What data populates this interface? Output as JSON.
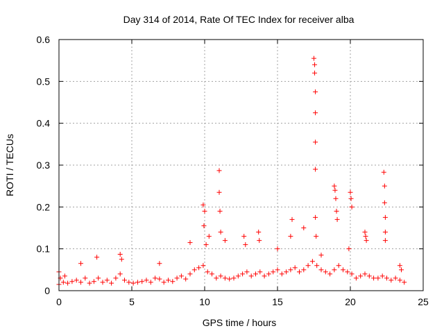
{
  "chart_data": {
    "type": "scatter",
    "title": "Day 314 of 2014, Rate Of TEC Index for receiver alba",
    "xlabel": "GPS time / hours",
    "ylabel": "ROTI / TECUs",
    "xlim": [
      0,
      25
    ],
    "ylim": [
      0,
      0.6
    ],
    "xticks": [
      0,
      5,
      10,
      15,
      20,
      25
    ],
    "xtick_labels": [
      "0",
      "5",
      "10",
      "15",
      "20",
      "25"
    ],
    "yticks": [
      0,
      0.1,
      0.2,
      0.3,
      0.4,
      0.5,
      0.6
    ],
    "ytick_labels": [
      "0",
      "0.1",
      "0.2",
      "0.3",
      "0.4",
      "0.5",
      "0.6"
    ],
    "grid": true,
    "marker": "+",
    "color": "#ff0000",
    "series": [
      {
        "name": "ROTI",
        "x": [
          0.0,
          0.3,
          0.6,
          0.9,
          1.2,
          1.5,
          1.8,
          2.1,
          2.4,
          2.7,
          3.0,
          3.3,
          3.6,
          3.9,
          4.2,
          4.5,
          4.8,
          5.1,
          5.4,
          5.7,
          6.0,
          6.3,
          6.6,
          6.9,
          7.2,
          7.5,
          7.8,
          8.1,
          8.4,
          8.7,
          9.0,
          9.3,
          9.6,
          9.9,
          10.2,
          10.5,
          10.8,
          11.1,
          11.4,
          11.7,
          12.0,
          12.3,
          12.6,
          12.9,
          13.2,
          13.5,
          13.8,
          14.1,
          14.4,
          14.7,
          15.0,
          15.3,
          15.6,
          15.9,
          16.2,
          16.5,
          16.8,
          17.1,
          17.4,
          17.7,
          18.0,
          18.3,
          18.6,
          18.9,
          19.2,
          19.5,
          19.8,
          20.1,
          20.4,
          20.7,
          21.0,
          21.3,
          21.6,
          21.9,
          22.2,
          22.5,
          22.8,
          23.1,
          23.4,
          23.7,
          0.0,
          0.1,
          0.4,
          1.5,
          2.6,
          4.2,
          4.3,
          6.9,
          9.0,
          9.9,
          9.95,
          10.0,
          10.1,
          10.3,
          11.0,
          11.0,
          11.05,
          11.1,
          11.4,
          12.7,
          12.8,
          13.7,
          13.75,
          15.0,
          15.9,
          16.0,
          16.8,
          17.5,
          17.55,
          17.55,
          17.6,
          17.6,
          17.6,
          17.6,
          17.6,
          17.65,
          18.0,
          18.9,
          18.95,
          19.0,
          19.05,
          19.1,
          19.9,
          20.0,
          20.05,
          20.1,
          21.0,
          21.05,
          21.1,
          22.3,
          22.35,
          22.35,
          22.4,
          22.4,
          22.4,
          23.4,
          23.5
        ],
        "y": [
          0.015,
          0.02,
          0.018,
          0.022,
          0.025,
          0.02,
          0.03,
          0.018,
          0.022,
          0.03,
          0.02,
          0.025,
          0.018,
          0.03,
          0.04,
          0.025,
          0.02,
          0.018,
          0.02,
          0.022,
          0.025,
          0.02,
          0.03,
          0.028,
          0.02,
          0.025,
          0.022,
          0.03,
          0.035,
          0.028,
          0.04,
          0.05,
          0.055,
          0.06,
          0.045,
          0.04,
          0.03,
          0.035,
          0.03,
          0.028,
          0.03,
          0.035,
          0.04,
          0.045,
          0.035,
          0.04,
          0.045,
          0.035,
          0.04,
          0.045,
          0.05,
          0.04,
          0.045,
          0.05,
          0.055,
          0.045,
          0.05,
          0.06,
          0.07,
          0.06,
          0.05,
          0.045,
          0.04,
          0.05,
          0.06,
          0.05,
          0.045,
          0.04,
          0.03,
          0.035,
          0.04,
          0.035,
          0.03,
          0.03,
          0.035,
          0.03,
          0.025,
          0.03,
          0.025,
          0.02,
          0.045,
          0.03,
          0.035,
          0.065,
          0.08,
          0.087,
          0.075,
          0.065,
          0.115,
          0.205,
          0.155,
          0.19,
          0.11,
          0.13,
          0.287,
          0.235,
          0.19,
          0.14,
          0.12,
          0.13,
          0.11,
          0.14,
          0.12,
          0.1,
          0.13,
          0.17,
          0.15,
          0.555,
          0.54,
          0.52,
          0.475,
          0.425,
          0.355,
          0.29,
          0.175,
          0.13,
          0.085,
          0.25,
          0.24,
          0.22,
          0.19,
          0.17,
          0.1,
          0.235,
          0.22,
          0.2,
          0.14,
          0.13,
          0.12,
          0.283,
          0.25,
          0.21,
          0.175,
          0.14,
          0.12,
          0.06,
          0.05
        ]
      }
    ]
  }
}
